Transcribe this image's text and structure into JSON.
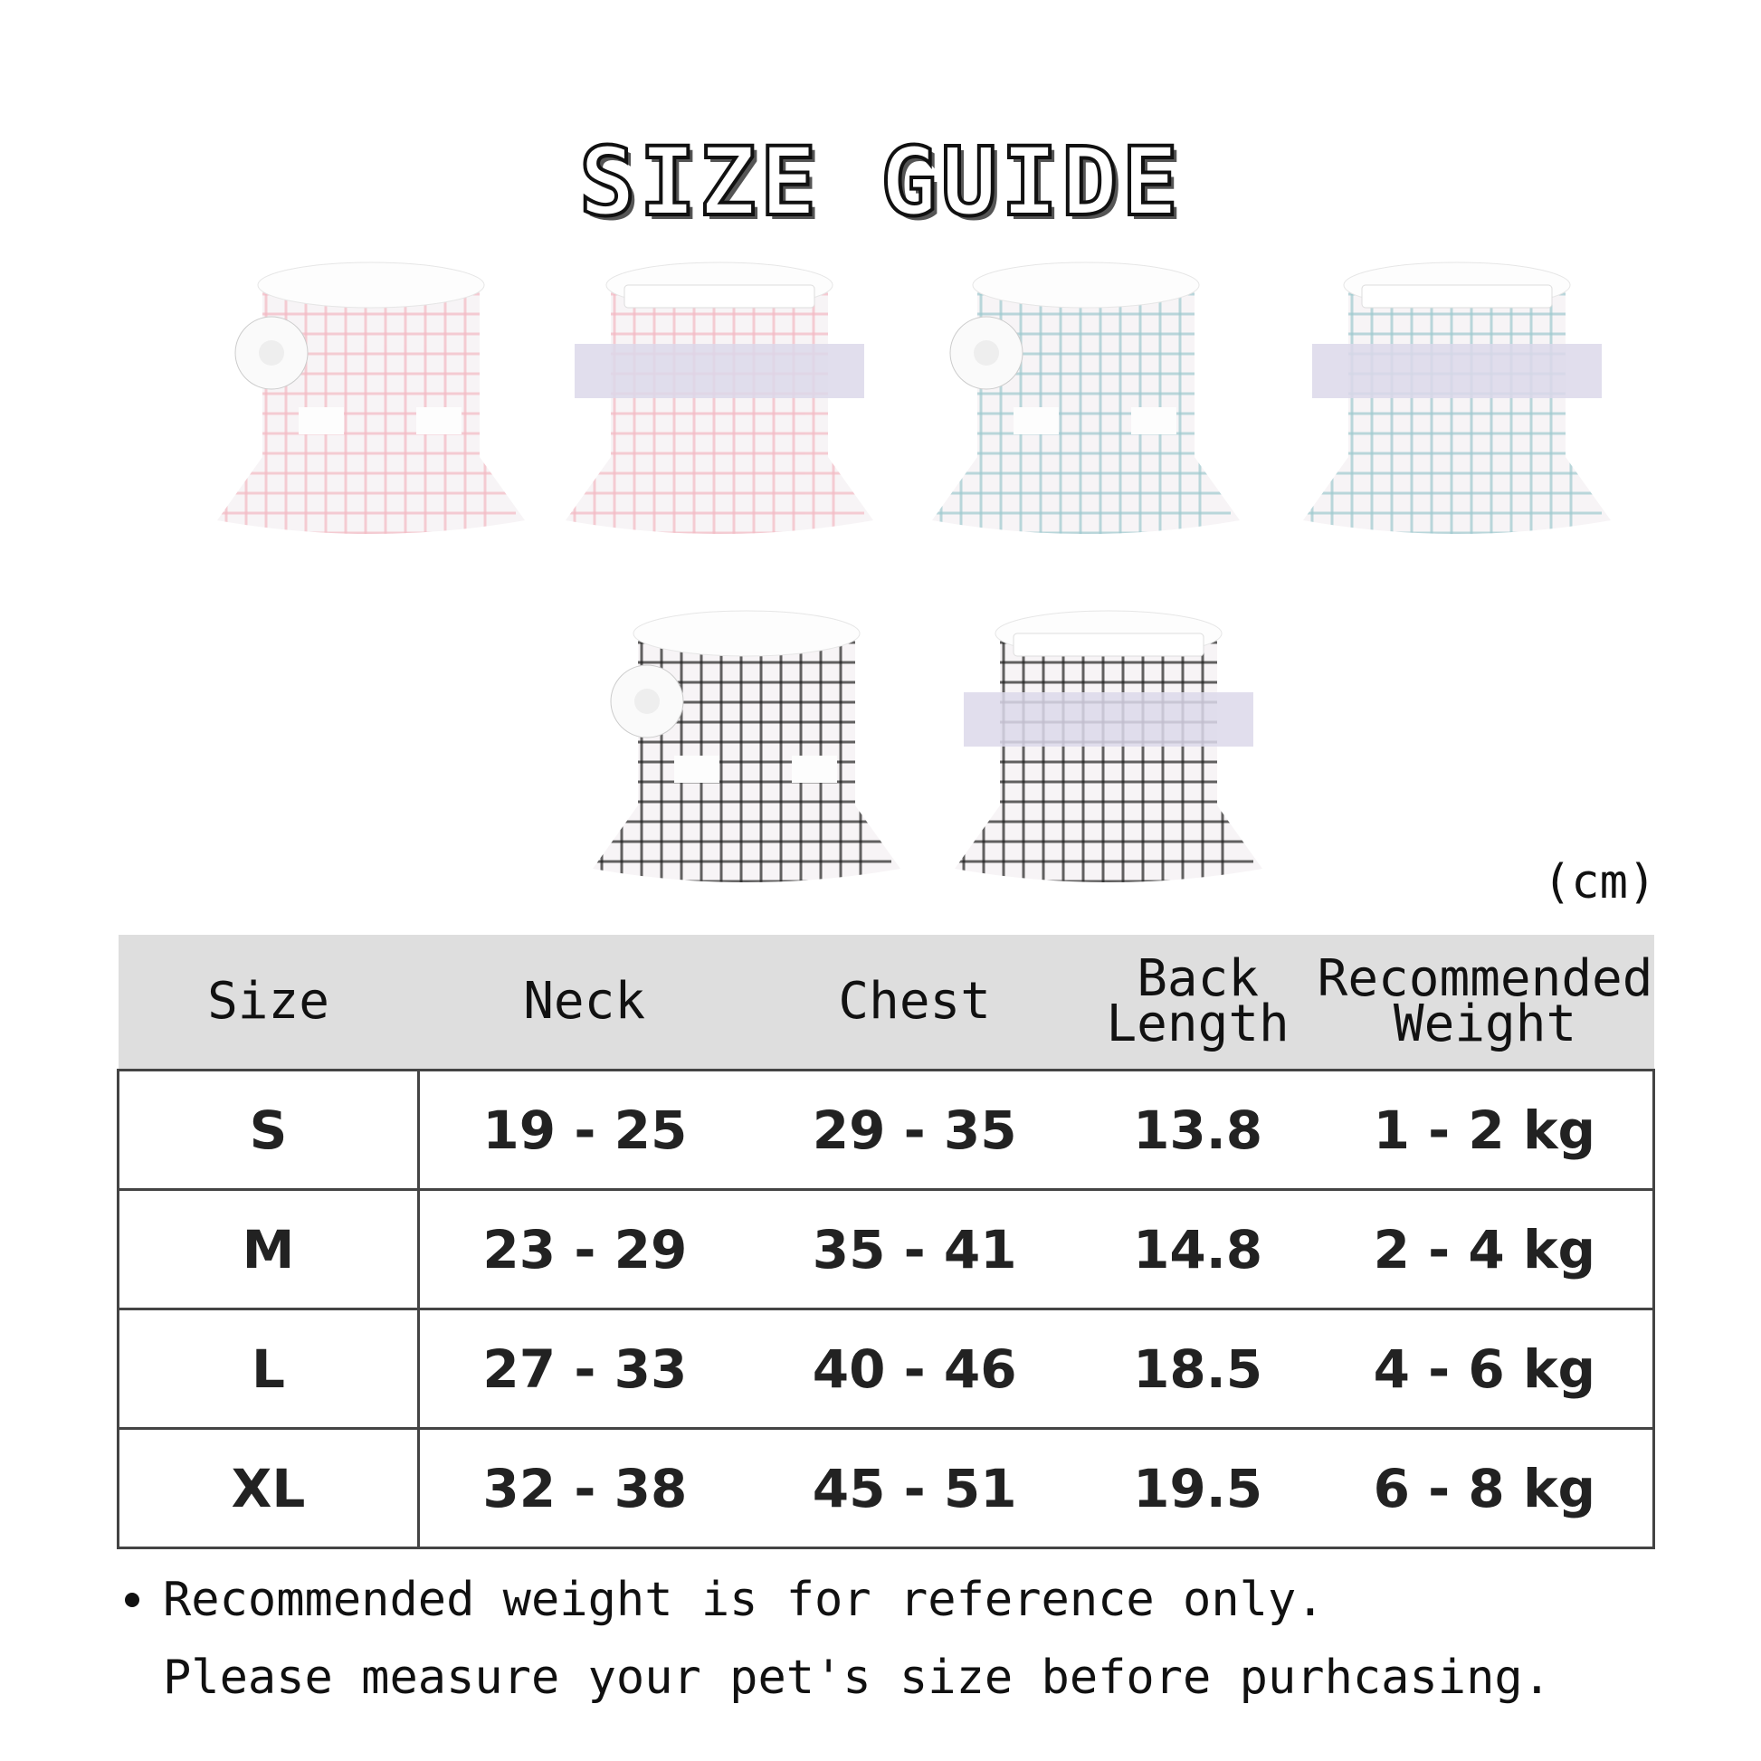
{
  "title": "SIZE GUIDE",
  "unit": "(cm)",
  "products": [
    {
      "color": "pink",
      "view": "front",
      "accent": "#f3b9c4"
    },
    {
      "color": "pink",
      "view": "back",
      "accent": "#f3b9c4"
    },
    {
      "color": "blue",
      "view": "front",
      "accent": "#9fc9cf"
    },
    {
      "color": "blue",
      "view": "back",
      "accent": "#9fc9cf"
    },
    {
      "color": "black",
      "view": "front",
      "accent": "#222222"
    },
    {
      "color": "black",
      "view": "back",
      "accent": "#222222"
    }
  ],
  "table": {
    "headers": [
      "Size",
      "Neck",
      "Chest",
      "Back Length",
      "Recommended Weight"
    ],
    "rows": [
      [
        "S",
        "19 - 25",
        "29 - 35",
        "13.8",
        "1 - 2 kg"
      ],
      [
        "M",
        "23 - 29",
        "35 - 41",
        "14.8",
        "2 - 4 kg"
      ],
      [
        "L",
        "27 - 33",
        "40 - 46",
        "18.5",
        "4 - 6 kg"
      ],
      [
        "XL",
        "32 - 38",
        "45 - 51",
        "19.5",
        "6 - 8 kg"
      ]
    ]
  },
  "notes": [
    "Recommended weight is for reference only.",
    "Please measure your pet's size before purhcasing."
  ]
}
